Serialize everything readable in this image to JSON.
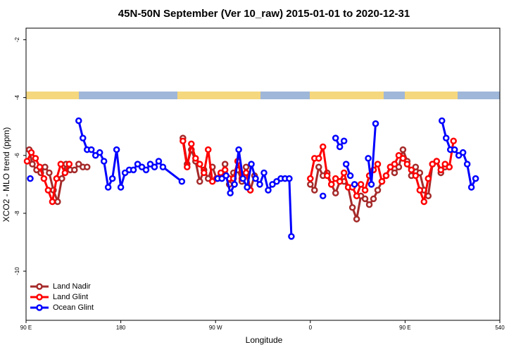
{
  "chart_data": {
    "type": "line",
    "title": "45N-50N September (Ver 10_raw)   2015-01-01 to 2020-12-31",
    "x_label": "Longitude",
    "y_label": "XCO2 - MLO trend (ppm)",
    "xlim": [
      90,
      540
    ],
    "ylim": [
      -11.7,
      -1.6
    ],
    "xticks": [
      {
        "value": 90,
        "label": "90 E"
      },
      180,
      {
        "value": 270,
        "label": "90 W"
      },
      {
        "value": 360,
        "label": "0"
      },
      {
        "value": 450,
        "label": "90 E"
      },
      540
    ],
    "yticks": [
      -2,
      -4,
      -6,
      -8,
      -10
    ],
    "legend": "bottom-left",
    "series": [
      {
        "name": "Land Nadir",
        "color": "#a52a2a",
        "x": [
          93,
          96,
          100,
          104,
          108,
          112,
          116,
          120,
          124,
          128,
          132,
          136,
          140,
          144,
          148,
          190,
          239,
          243,
          247,
          251,
          255,
          259,
          263,
          267,
          271,
          275,
          279,
          283,
          287,
          291,
          295,
          299,
          303,
          307,
          330,
          360,
          364,
          368,
          372,
          376,
          380,
          384,
          388,
          392,
          396,
          400,
          404,
          408,
          412,
          416,
          420,
          424,
          428,
          432,
          436,
          440,
          444,
          448,
          452,
          456,
          460,
          464,
          468,
          472,
          476,
          480,
          484,
          488,
          492
        ],
        "values": [
          -5.8,
          -6.3,
          -6.5,
          -6.6,
          -6.4,
          -6.6,
          -7.2,
          -7.6,
          -6.8,
          -6.3,
          -6.5,
          -6.5,
          -6.3,
          -6.4,
          -6.4,
          null,
          -5.4,
          -6.3,
          -5.8,
          -6.2,
          -6.9,
          -6.5,
          -6.8,
          -6.4,
          -6.8,
          -6.7,
          -6.3,
          -7.0,
          -6.6,
          -6.5,
          -6.9,
          -6.4,
          -7.2,
          -6.7,
          null,
          -7.0,
          -7.2,
          -6.4,
          -6.7,
          -6.6,
          -7.0,
          -7.3,
          -6.9,
          -6.9,
          -7.1,
          -7.8,
          -8.2,
          -7.4,
          -7.5,
          -7.7,
          -7.5,
          -7.2,
          -6.9,
          -6.7,
          -6.4,
          -6.6,
          -6.4,
          -5.8,
          -6.2,
          -6.7,
          -6.4,
          -6.6,
          -7.2,
          -7.4,
          -6.3,
          -6.2,
          -6.6,
          -6.4,
          -6.4
        ]
      },
      {
        "name": "Land Glint",
        "color": "#ff0000",
        "x": [
          91,
          95,
          99,
          103,
          107,
          111,
          115,
          119,
          123,
          127,
          131,
          190,
          239,
          243,
          247,
          251,
          255,
          259,
          263,
          267,
          271,
          275,
          279,
          283,
          287,
          291,
          295,
          299,
          303,
          330,
          360,
          364,
          368,
          372,
          376,
          380,
          384,
          388,
          392,
          396,
          400,
          404,
          408,
          412,
          416,
          420,
          424,
          428,
          432,
          436,
          440,
          444,
          448,
          452,
          456,
          460,
          464,
          468,
          472,
          476,
          480,
          484,
          488,
          492,
          496
        ],
        "values": [
          -6.2,
          -5.9,
          -6.1,
          -6.4,
          -6.8,
          -7.2,
          -7.6,
          -6.8,
          -6.3,
          -6.6,
          -6.3,
          null,
          -5.5,
          -6.4,
          -5.6,
          -6.1,
          -6.3,
          -6.6,
          -5.8,
          -6.9,
          -6.8,
          -6.6,
          -6.5,
          -6.8,
          -6.8,
          -6.2,
          -6.8,
          -6.6,
          -7.2,
          null,
          -6.8,
          -6.1,
          -6.1,
          -5.7,
          -6.7,
          -7.0,
          -6.8,
          -6.9,
          -6.6,
          -7.1,
          -7.1,
          -7.4,
          -7.0,
          -7.2,
          -6.7,
          -6.5,
          -6.3,
          -6.9,
          -6.7,
          -6.4,
          -6.3,
          -6.0,
          -6.1,
          -6.3,
          -6.5,
          -6.7,
          -7.2,
          -7.6,
          -6.8,
          -6.3,
          -6.2,
          -6.5,
          -6.3,
          -6.4,
          -5.5
        ]
      },
      {
        "name": "Ocean Glint",
        "color": "#0000ff",
        "x": [
          94,
          117,
          140,
          144,
          148,
          152,
          156,
          160,
          164,
          168,
          172,
          176,
          180,
          184,
          188,
          192,
          196,
          200,
          204,
          208,
          212,
          216,
          220,
          238,
          255,
          272,
          276,
          280,
          284,
          288,
          292,
          296,
          300,
          304,
          308,
          312,
          316,
          320,
          324,
          328,
          332,
          336,
          340,
          342,
          357,
          372,
          378,
          384,
          388,
          392,
          393,
          394,
          398,
          400,
          402,
          408,
          415,
          418,
          422,
          450,
          485,
          489,
          493,
          497,
          501,
          505,
          509,
          513,
          517
        ],
        "values": [
          -6.8,
          null,
          -4.8,
          -5.4,
          -5.8,
          -5.8,
          -6.0,
          -5.9,
          -6.2,
          -7.1,
          -6.8,
          -5.8,
          -7.1,
          -6.6,
          -6.5,
          -6.5,
          -6.3,
          -6.4,
          -6.5,
          -6.3,
          -6.4,
          -6.2,
          -6.4,
          -6.9,
          null,
          -6.8,
          -6.8,
          -6.7,
          -7.3,
          -7.0,
          -5.8,
          -6.8,
          -7.1,
          -6.3,
          -6.8,
          -7.0,
          -6.6,
          -7.2,
          -7.0,
          -6.9,
          -6.8,
          -6.8,
          -6.8,
          -8.8,
          null,
          -7.4,
          null,
          -5.4,
          -5.7,
          -5.5,
          null,
          -6.3,
          -6.7,
          null,
          -7.0,
          null,
          -6.1,
          -7.0,
          -4.9,
          null,
          -4.8,
          -5.4,
          -5.8,
          -5.8,
          -6.0,
          -5.9,
          -6.3,
          -7.1,
          -6.8
        ]
      }
    ]
  }
}
